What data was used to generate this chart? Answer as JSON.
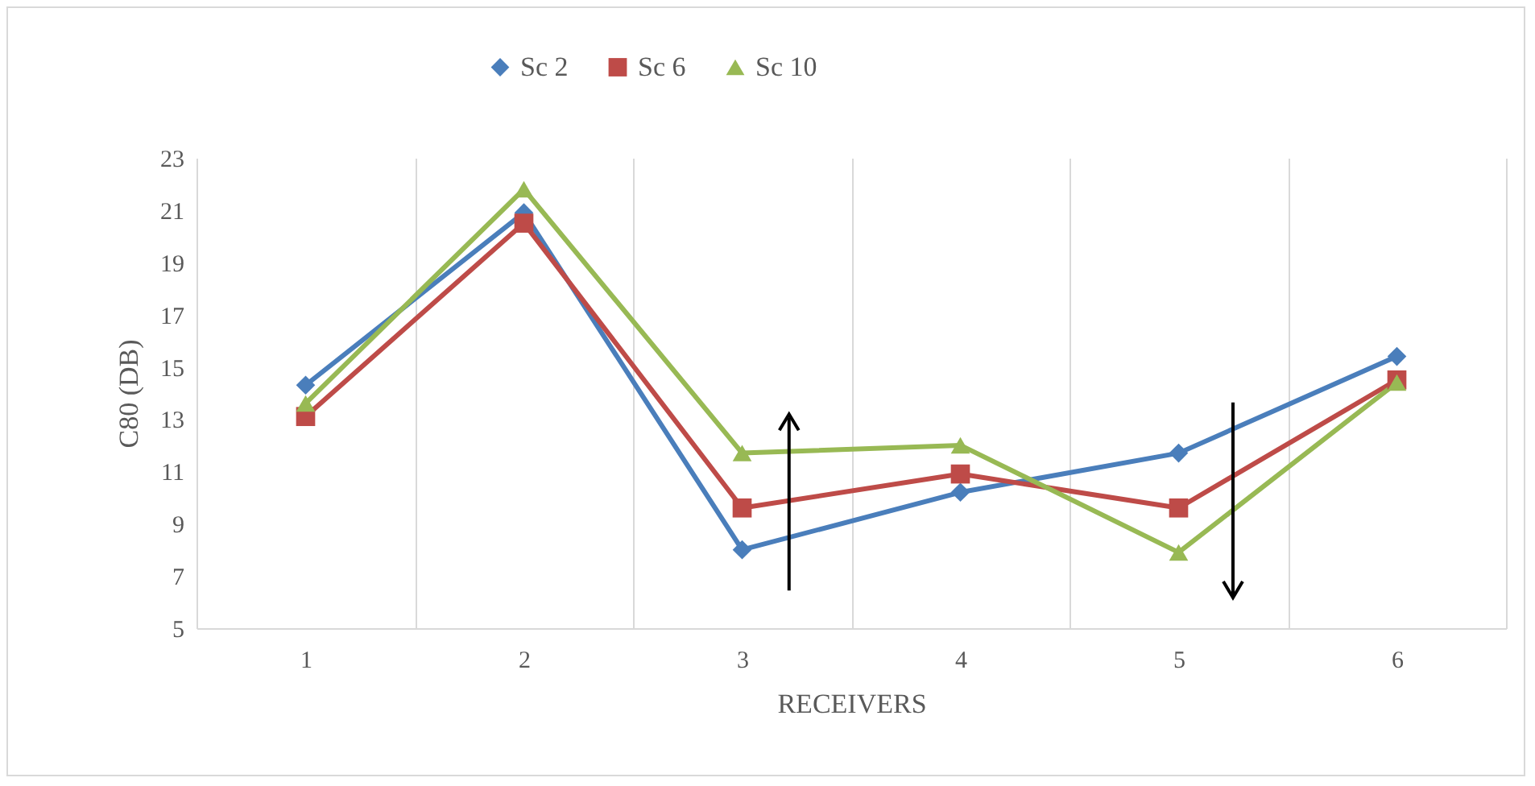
{
  "chart_data": {
    "type": "line",
    "xlabel": "RECEIVERS",
    "ylabel": "C80 (DB)",
    "categories": [
      "1",
      "2",
      "3",
      "4",
      "5",
      "6"
    ],
    "ylim": [
      5,
      23
    ],
    "yticks": [
      5,
      7,
      9,
      11,
      13,
      15,
      17,
      19,
      21,
      23
    ],
    "grid": "x",
    "legend": "top",
    "series": [
      {
        "name": "Sc 2",
        "color": "#4a7ebb",
        "marker": "diamond",
        "values": [
          14.3,
          20.9,
          8.0,
          10.2,
          11.7,
          15.4
        ]
      },
      {
        "name": "Sc 6",
        "color": "#be4b48",
        "marker": "square",
        "values": [
          13.1,
          20.5,
          9.6,
          10.9,
          9.6,
          14.5
        ]
      },
      {
        "name": "Sc 10",
        "color": "#98b954",
        "marker": "triangle",
        "values": [
          13.6,
          21.8,
          11.7,
          12.0,
          7.9,
          14.4
        ]
      }
    ]
  }
}
